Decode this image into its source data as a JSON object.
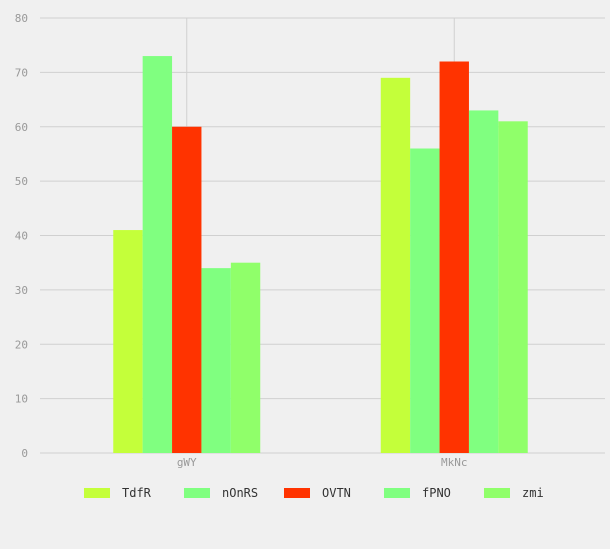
{
  "chart_data": {
    "type": "bar",
    "categories": [
      "gWY",
      "MkNc"
    ],
    "series": [
      {
        "name": "TdfR",
        "color": "#c4ff3a",
        "values": [
          41,
          69
        ]
      },
      {
        "name": "nOnRS",
        "color": "#80ff80",
        "values": [
          73,
          56
        ]
      },
      {
        "name": "OVTN",
        "color": "#ff3300",
        "values": [
          60,
          72
        ]
      },
      {
        "name": "fPNO",
        "color": "#80ff80",
        "values": [
          34,
          63
        ]
      },
      {
        "name": "zmi",
        "color": "#90ff6a",
        "values": [
          35,
          61
        ]
      }
    ],
    "ylim": [
      0,
      80
    ],
    "yticks": [
      0,
      10,
      20,
      30,
      40,
      50,
      60,
      70,
      80
    ],
    "grid": true,
    "legend_position": "bottom"
  }
}
